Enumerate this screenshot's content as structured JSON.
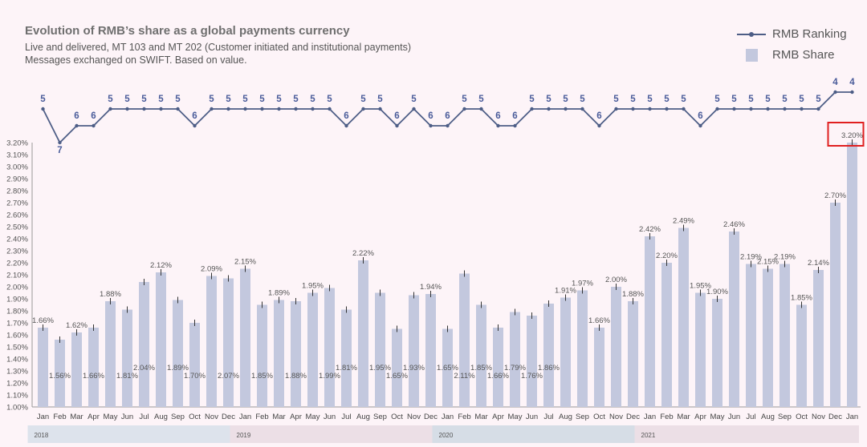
{
  "header": {
    "title": "Evolution of RMB’s share as a global payments currency",
    "subtitle_line1": "Live and delivered,  MT 103 and MT 202 (Customer initiated and institutional payments)",
    "subtitle_line2": "Messages exchanged on SWIFT. Based on value."
  },
  "legend": {
    "ranking": "RMB Ranking",
    "share": "RMB Share"
  },
  "colors": {
    "bar": "#c3c8de",
    "line": "#4d5d86",
    "ranking_label": "#4a5c9a",
    "highlight": "#e02020",
    "background": "#fdf4f8"
  },
  "chart_data": {
    "type": "bar",
    "title": "Evolution of RMB’s share as a global payments currency",
    "categories": [
      "Jan",
      "Feb",
      "Mar",
      "Apr",
      "May",
      "Jun",
      "Jul",
      "Aug",
      "Sep",
      "Oct",
      "Nov",
      "Dec",
      "Jan",
      "Feb",
      "Mar",
      "Apr",
      "May",
      "Jun",
      "Jul",
      "Aug",
      "Sep",
      "Oct",
      "Nov",
      "Dec",
      "Jan",
      "Feb",
      "Mar",
      "Apr",
      "May",
      "Jun",
      "Jul",
      "Aug",
      "Sep",
      "Oct",
      "Nov",
      "Dec",
      "Jan",
      "Feb",
      "Mar",
      "Apr",
      "May",
      "Jun",
      "Jul",
      "Aug",
      "Sep",
      "Oct",
      "Nov",
      "Dec",
      "Jan"
    ],
    "years": [
      {
        "label": "2018",
        "start": 0,
        "end": 11
      },
      {
        "label": "2019",
        "start": 12,
        "end": 23
      },
      {
        "label": "2020",
        "start": 24,
        "end": 35
      },
      {
        "label": "2021",
        "start": 36,
        "end": 48
      }
    ],
    "series": [
      {
        "name": "RMB Share",
        "values": [
          1.66,
          1.56,
          1.62,
          1.66,
          1.88,
          1.81,
          2.04,
          2.12,
          1.89,
          1.7,
          2.09,
          2.07,
          2.15,
          1.85,
          1.89,
          1.88,
          1.95,
          1.99,
          1.81,
          2.22,
          1.95,
          1.65,
          1.93,
          1.94,
          1.65,
          2.11,
          1.85,
          1.66,
          1.79,
          1.76,
          1.86,
          1.91,
          1.97,
          1.66,
          2.0,
          1.88,
          2.42,
          2.2,
          2.49,
          1.95,
          1.9,
          2.46,
          2.19,
          2.15,
          2.19,
          1.85,
          2.14,
          2.7,
          3.2
        ],
        "labels": [
          "1.66%",
          "1.56%",
          "1.62%",
          "1.66%",
          "1.88%",
          "1.81%",
          "2.04%",
          "2.12%",
          "1.89%",
          "1.70%",
          "2.09%",
          "2.07%",
          "2.15%",
          "1.85%",
          "1.89%",
          "1.88%",
          "1.95%",
          "1.99%",
          "1.81%",
          "2.22%",
          "1.95%",
          "1.65%",
          "1.93%",
          "1.94%",
          "1.65%",
          "2.11%",
          "1.85%",
          "1.66%",
          "1.79%",
          "1.76%",
          "1.86%",
          "1.91%",
          "1.97%",
          "1.66%",
          "2.00%",
          "1.88%",
          "2.42%",
          "2.20%",
          "2.49%",
          "1.95%",
          "1.90%",
          "2.46%",
          "2.19%",
          "2.15%",
          "2.19%",
          "1.85%",
          "2.14%",
          "2.70%",
          "3.20%"
        ],
        "label_inside": [
          false,
          true,
          false,
          true,
          false,
          true,
          true,
          false,
          true,
          true,
          false,
          true,
          false,
          true,
          false,
          true,
          false,
          true,
          true,
          false,
          true,
          true,
          true,
          false,
          true,
          true,
          true,
          true,
          true,
          true,
          true,
          false,
          false,
          false,
          false,
          false,
          false,
          false,
          false,
          false,
          false,
          false,
          false,
          false,
          false,
          false,
          false,
          false,
          false
        ]
      },
      {
        "name": "RMB Ranking",
        "values": [
          5,
          7,
          6,
          6,
          5,
          5,
          5,
          5,
          5,
          6,
          5,
          5,
          5,
          5,
          5,
          5,
          5,
          5,
          6,
          5,
          5,
          6,
          5,
          6,
          6,
          5,
          5,
          6,
          6,
          5,
          5,
          5,
          5,
          6,
          5,
          5,
          5,
          5,
          5,
          6,
          5,
          5,
          5,
          5,
          5,
          5,
          5,
          4,
          4
        ]
      }
    ],
    "ylim": [
      1.0,
      3.2
    ],
    "yticks": [
      "1.00%",
      "1.10%",
      "1.20%",
      "1.30%",
      "1.40%",
      "1.50%",
      "1.60%",
      "1.70%",
      "1.80%",
      "1.90%",
      "2.00%",
      "2.10%",
      "2.20%",
      "2.30%",
      "2.40%",
      "2.50%",
      "2.60%",
      "2.70%",
      "2.80%",
      "2.90%",
      "3.00%",
      "3.10%",
      "3.20%"
    ],
    "highlighted_index": 48
  }
}
